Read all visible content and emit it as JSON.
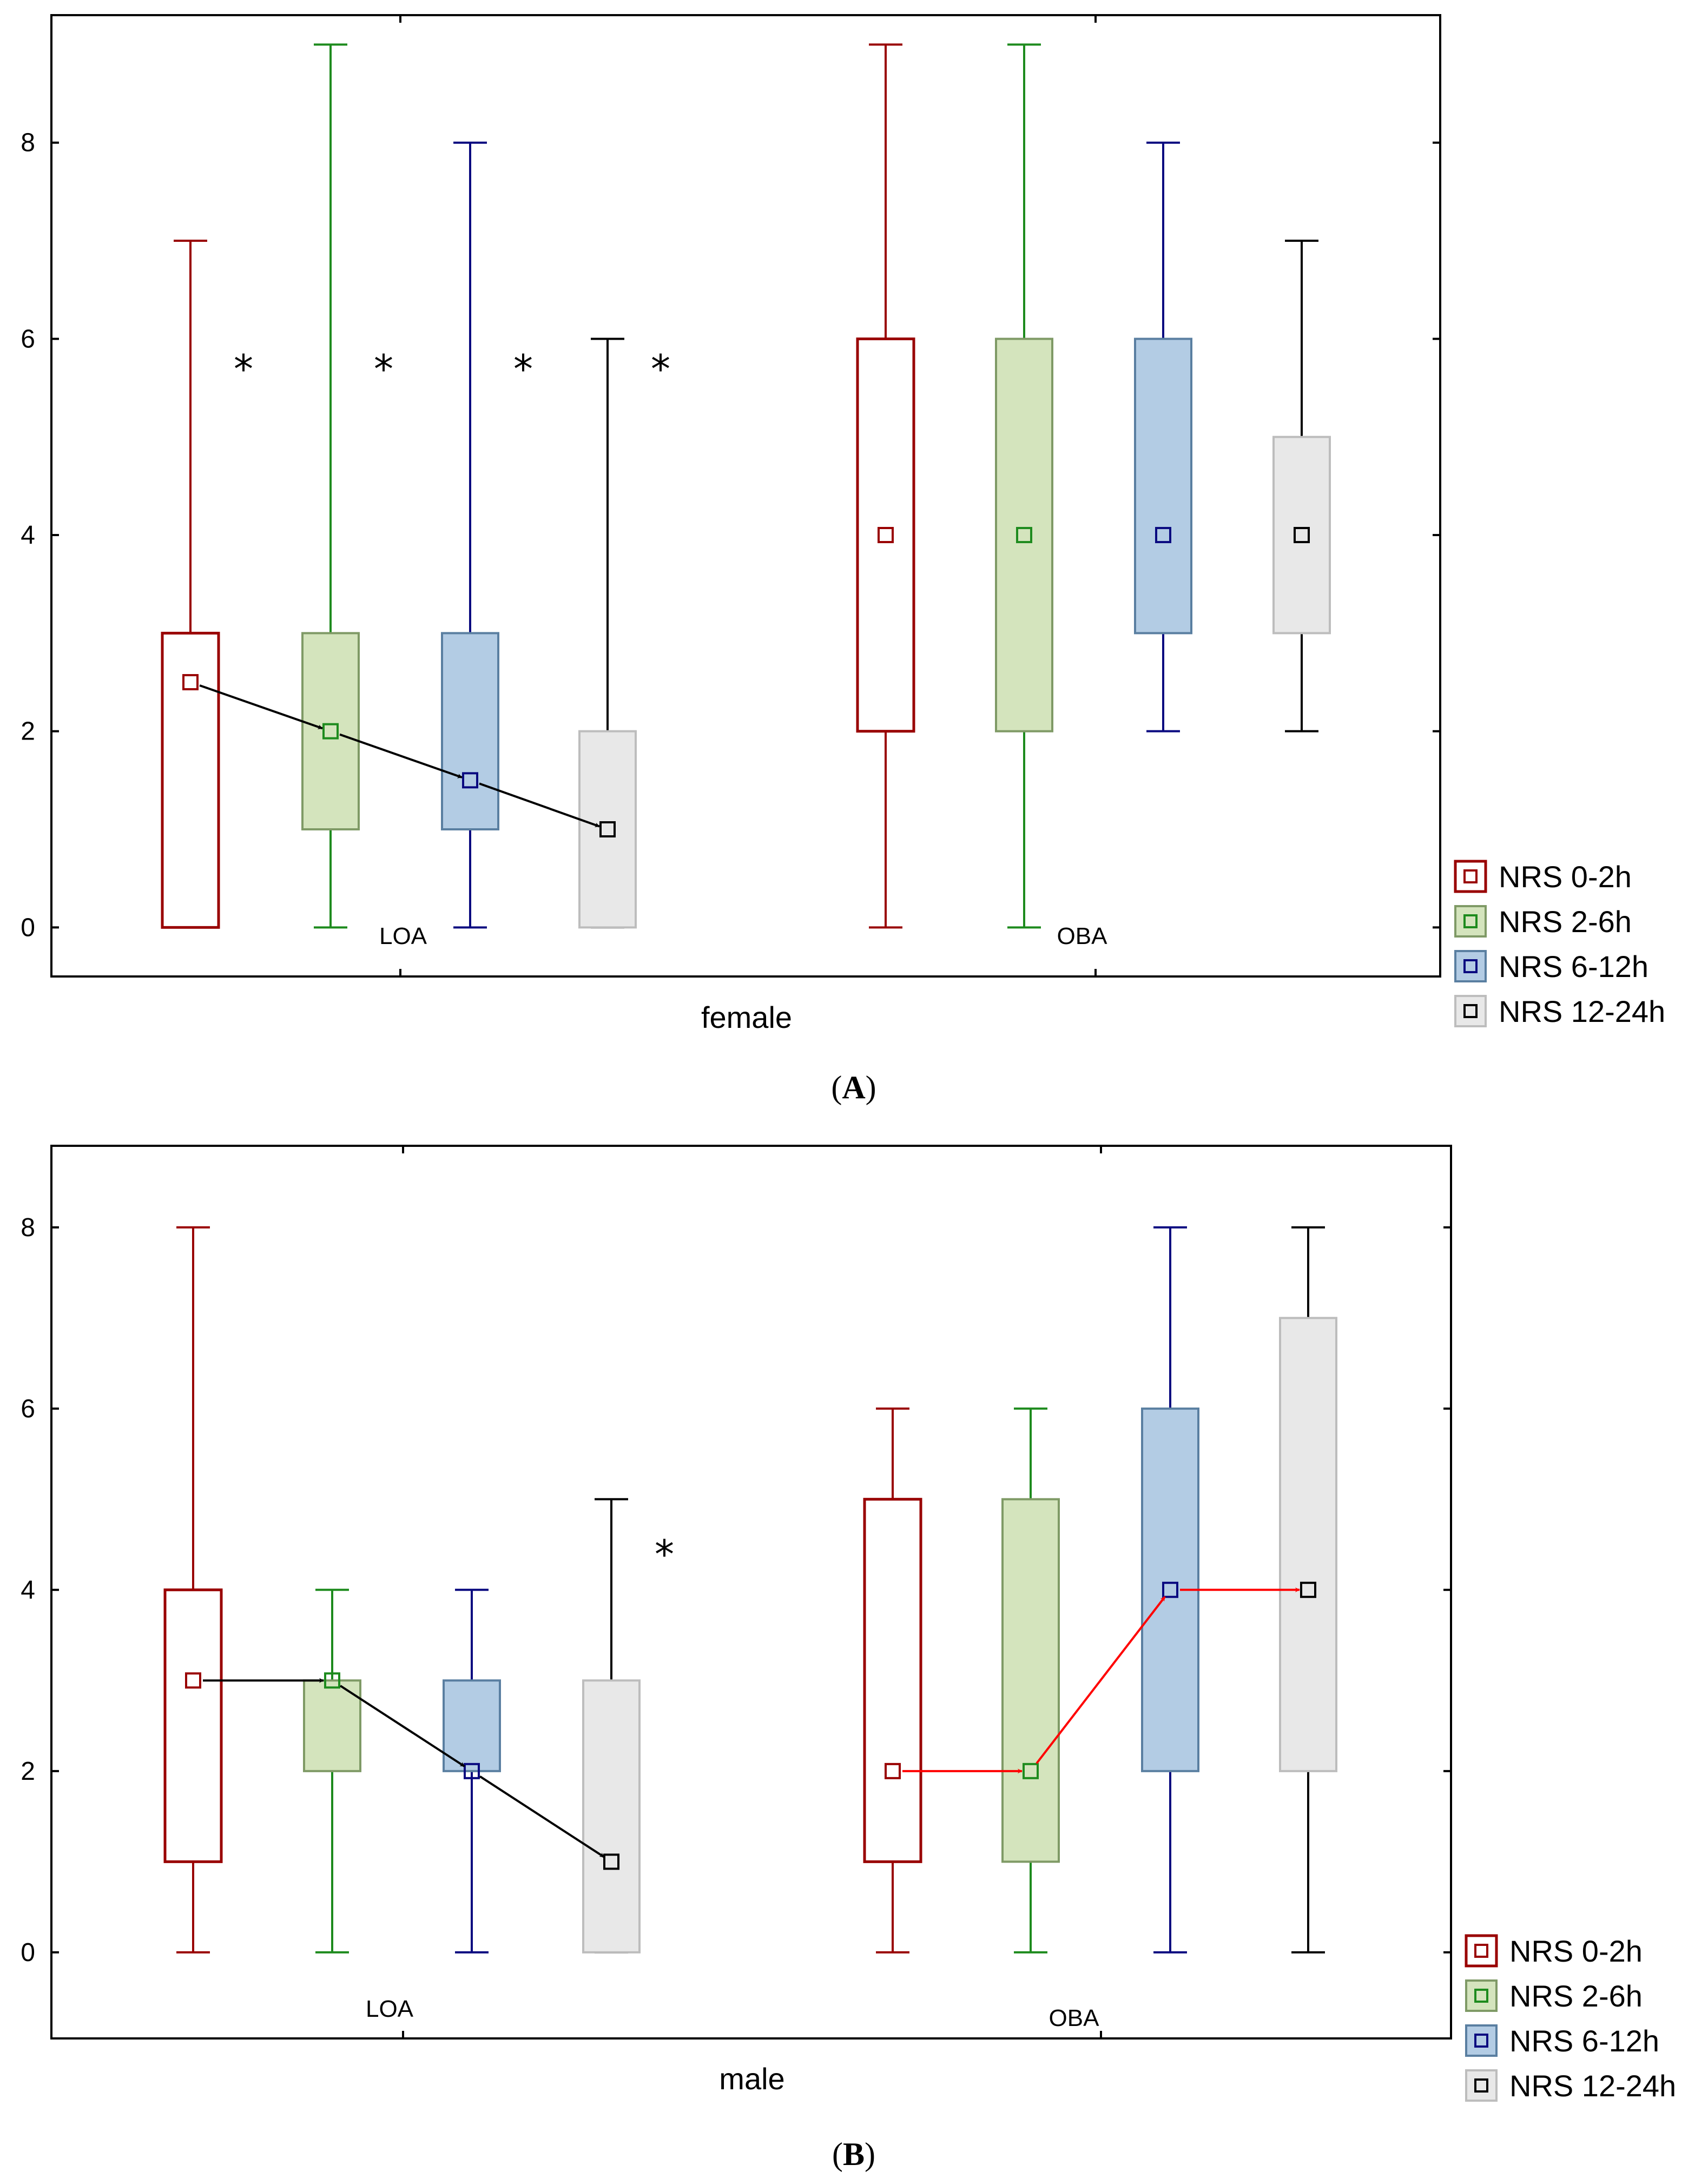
{
  "series_styles": [
    {
      "name": "NRS 0-2h",
      "line": "#990000",
      "fill": "#ffffff",
      "marker": "#990000"
    },
    {
      "name": "NRS 2-6h",
      "line": "#1e8b1e",
      "fill": "#d4e4bd",
      "box_edge": "#7f9a66",
      "marker": "#1e8b1e"
    },
    {
      "name": "NRS 6-12h",
      "line": "#0a0a80",
      "fill": "#b3cce4",
      "box_edge": "#5a7fa1",
      "marker": "#0a0a80"
    },
    {
      "name": "NRS 12-24h",
      "line": "#000000",
      "fill": "#e8e8e8",
      "box_edge": "#bdbdbd",
      "marker": "#000000"
    }
  ],
  "chart_data": [
    {
      "type": "box",
      "panel_label": "A",
      "xlabel": "female",
      "ylim": [
        -0.5,
        9.3
      ],
      "yticks": [
        "0",
        "2",
        "4",
        "6",
        "8"
      ],
      "groups": [
        "LOA",
        "OBA"
      ],
      "legend": [
        "NRS 0-2h",
        "NRS 2-6h",
        "NRS 6-12h",
        "NRS 12-24h"
      ],
      "legend_position": "outside-bottom-right",
      "boxes": [
        {
          "group": "LOA",
          "series": "NRS 0-2h",
          "min": 0,
          "q1": 0,
          "median": 2.5,
          "q3": 3,
          "max": 7
        },
        {
          "group": "LOA",
          "series": "NRS 2-6h",
          "min": 0,
          "q1": 1,
          "median": 2,
          "q3": 3,
          "max": 9
        },
        {
          "group": "LOA",
          "series": "NRS 6-12h",
          "min": 0,
          "q1": 1,
          "median": 1.5,
          "q3": 3,
          "max": 8
        },
        {
          "group": "LOA",
          "series": "NRS 12-24h",
          "min": 0,
          "q1": 0,
          "median": 1,
          "q3": 2,
          "max": 6
        },
        {
          "group": "OBA",
          "series": "NRS 0-2h",
          "min": 0,
          "q1": 2,
          "median": 4,
          "q3": 6,
          "max": 9
        },
        {
          "group": "OBA",
          "series": "NRS 2-6h",
          "min": 0,
          "q1": 2,
          "median": 4,
          "q3": 6,
          "max": 9
        },
        {
          "group": "OBA",
          "series": "NRS 6-12h",
          "min": 2,
          "q1": 3,
          "median": 4,
          "q3": 6,
          "max": 8
        },
        {
          "group": "OBA",
          "series": "NRS 12-24h",
          "min": 2,
          "q1": 3,
          "median": 4,
          "q3": 5,
          "max": 7
        }
      ],
      "stars": [
        {
          "after_box": 0,
          "y": 5.7,
          "text": "*"
        },
        {
          "after_box": 1,
          "y": 5.7,
          "text": "*"
        },
        {
          "after_box": 2,
          "y": 5.7,
          "text": "*"
        },
        {
          "after_box": 3,
          "y": 5.7,
          "text": "*"
        }
      ],
      "arrows": [
        {
          "from_box": 0,
          "to_box": 1,
          "color": "#000000"
        },
        {
          "from_box": 1,
          "to_box": 2,
          "color": "#000000"
        },
        {
          "from_box": 2,
          "to_box": 3,
          "color": "#000000"
        }
      ]
    },
    {
      "type": "box",
      "panel_label": "B",
      "xlabel": "male",
      "ylim": [
        -0.95,
        8.9
      ],
      "yticks": [
        "0",
        "2",
        "4",
        "6",
        "8"
      ],
      "groups": [
        "LOA",
        "OBA"
      ],
      "legend": [
        "NRS 0-2h",
        "NRS 2-6h",
        "NRS 6-12h",
        "NRS 12-24h"
      ],
      "legend_position": "outside-bottom-right",
      "boxes": [
        {
          "group": "LOA",
          "series": "NRS 0-2h",
          "min": 0,
          "q1": 1,
          "median": 3,
          "q3": 4,
          "max": 8
        },
        {
          "group": "LOA",
          "series": "NRS 2-6h",
          "min": 0,
          "q1": 2,
          "median": 3,
          "q3": 3,
          "max": 4
        },
        {
          "group": "LOA",
          "series": "NRS 6-12h",
          "min": 0,
          "q1": 2,
          "median": 2,
          "q3": 3,
          "max": 4
        },
        {
          "group": "LOA",
          "series": "NRS 12-24h",
          "min": 0,
          "q1": 0,
          "median": 1,
          "q3": 3,
          "max": 5
        },
        {
          "group": "OBA",
          "series": "NRS 0-2h",
          "min": 0,
          "q1": 1,
          "median": 2,
          "q3": 5,
          "max": 6
        },
        {
          "group": "OBA",
          "series": "NRS 2-6h",
          "min": 0,
          "q1": 1,
          "median": 2,
          "q3": 5,
          "max": 6
        },
        {
          "group": "OBA",
          "series": "NRS 6-12h",
          "min": 0,
          "q1": 2,
          "median": 4,
          "q3": 6,
          "max": 8
        },
        {
          "group": "OBA",
          "series": "NRS 12-24h",
          "min": 0,
          "q1": 2,
          "median": 4,
          "q3": 7,
          "max": 8
        }
      ],
      "stars": [
        {
          "after_box": 3,
          "y": 4.4,
          "text": "*"
        }
      ],
      "arrows": [
        {
          "from_box": 0,
          "to_box": 1,
          "color": "#000000"
        },
        {
          "from_box": 1,
          "to_box": 2,
          "color": "#000000"
        },
        {
          "from_box": 2,
          "to_box": 3,
          "color": "#000000"
        },
        {
          "from_box": 4,
          "to_box": 5,
          "color": "#ff0000"
        },
        {
          "from_box": 5,
          "to_box": 6,
          "color": "#ff0000"
        },
        {
          "from_box": 6,
          "to_box": 7,
          "color": "#ff0000"
        }
      ]
    }
  ]
}
